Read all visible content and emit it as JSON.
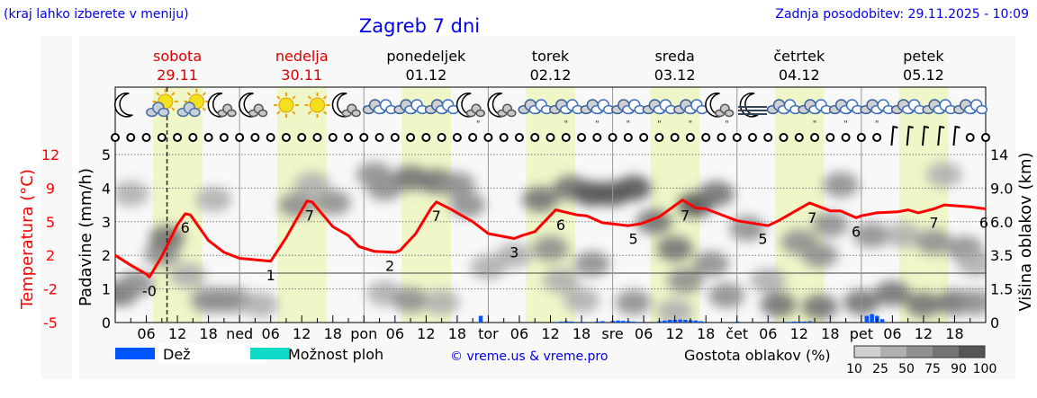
{
  "header": {
    "hint": "(kraj lahko izberete v meniju)",
    "title": "Zagreb 7 dni",
    "updated": "Zadnja posodobitev: 29.11.2025 - 10:09"
  },
  "colors": {
    "text_blue": "#0000ee",
    "temperature": "#ff0000",
    "weekend": "#dd0000",
    "daylight": "#eff6c8",
    "rain": "#0055ff",
    "showers": "#11d9c8",
    "cloud_scale": [
      "#d0d0d0",
      "#b0b0b0",
      "#909090",
      "#747474",
      "#555555"
    ]
  },
  "days": [
    {
      "name": "sobota",
      "date": "29.11",
      "weekend": true,
      "short": ""
    },
    {
      "name": "nedelja",
      "date": "30.11",
      "weekend": true,
      "short": "ned"
    },
    {
      "name": "ponedeljek",
      "date": "01.12",
      "weekend": false,
      "short": "pon"
    },
    {
      "name": "torek",
      "date": "02.12",
      "weekend": false,
      "short": "tor"
    },
    {
      "name": "sreda",
      "date": "03.12",
      "weekend": false,
      "short": "sre"
    },
    {
      "name": "četrtek",
      "date": "04.12",
      "weekend": false,
      "short": "čet"
    },
    {
      "name": "petek",
      "date": "05.12",
      "weekend": false,
      "short": "pet"
    }
  ],
  "hour_labels": [
    "06",
    "12",
    "18"
  ],
  "weather_icons": [
    "moon",
    "sun-cloud",
    "sun-cloud",
    "moon-cloud",
    "moon-cloud",
    "sun",
    "sun",
    "moon-cloud",
    "cloudy",
    "cloudy",
    "cloudy",
    "moon-cloud-rain",
    "moon-cloud",
    "cloudy",
    "cloudy-rain",
    "cloudy-rain",
    "cloudy-rain",
    "cloudy-rain",
    "cloudy-rain",
    "moon-cloud-rain",
    "moon-fog",
    "cloudy",
    "cloudy-rain",
    "cloudy-rain",
    "cloudy-rain",
    "cloudy",
    "cloudy",
    "cloudy"
  ],
  "wind_barb_hours": [
    150,
    153,
    156,
    159,
    162
  ],
  "axes": {
    "temperature_label": "Temperatura (°C)",
    "temperature_ticks": [
      "-5",
      "-2",
      "2",
      "5",
      "9",
      "12"
    ],
    "precip_label": "Padavine (mm/h)",
    "precip_ticks": [
      "0",
      "1",
      "2",
      "3",
      "4",
      "5"
    ],
    "cloud_height_label": "Višina oblakov (km)",
    "cloud_height_ticks": [
      "0",
      "1.5",
      "3.5",
      "6.0",
      "9.0",
      "14"
    ]
  },
  "legend": {
    "rain": "Dež",
    "showers": "Možnost ploh",
    "copyright": "© vreme.us & vreme.pro",
    "cloud_density": "Gostota oblakov (%)",
    "cloud_density_ticks": [
      "10",
      "25",
      "50",
      "75",
      "90",
      "100"
    ]
  },
  "chart_data": {
    "type": "line",
    "x_unit": "hours from Sat 29.11 00:00",
    "xlim": [
      0,
      168
    ],
    "ylim_precip": [
      0,
      5
    ],
    "ylim_temperature": [
      -5,
      12
    ],
    "grid": true,
    "current_time_hour": 10,
    "daylight": [
      [
        7.3,
        16.8
      ]
    ],
    "temperature": [
      [
        0,
        1.8
      ],
      [
        3,
        0.8
      ],
      [
        6,
        -0.1
      ],
      [
        6.6,
        -0.4
      ],
      [
        9,
        1.7
      ],
      [
        12,
        4.9
      ],
      [
        13.5,
        6.0
      ],
      [
        14.5,
        5.9
      ],
      [
        18,
        3.3
      ],
      [
        21,
        2.1
      ],
      [
        24,
        1.5
      ],
      [
        30,
        1.2
      ],
      [
        33,
        3.6
      ],
      [
        37,
        7.3
      ],
      [
        38,
        7.2
      ],
      [
        42,
        4.7
      ],
      [
        45,
        3.8
      ],
      [
        47,
        2.7
      ],
      [
        50,
        2.2
      ],
      [
        54,
        2.1
      ],
      [
        55,
        2.3
      ],
      [
        58,
        4.0
      ],
      [
        61,
        6.6
      ],
      [
        62,
        7.2
      ],
      [
        65,
        6.4
      ],
      [
        68,
        5.5
      ],
      [
        69,
        5.2
      ],
      [
        72,
        4.0
      ],
      [
        77,
        3.5
      ],
      [
        78.5,
        3.8
      ],
      [
        81,
        4.2
      ],
      [
        85,
        6.4
      ],
      [
        89,
        5.9
      ],
      [
        91,
        5.8
      ],
      [
        94,
        5.1
      ],
      [
        99,
        4.8
      ],
      [
        101.5,
        5.0
      ],
      [
        103,
        5.3
      ],
      [
        105,
        5.7
      ],
      [
        109.5,
        7.4
      ],
      [
        112,
        6.6
      ],
      [
        114,
        6.5
      ],
      [
        116,
        6.1
      ],
      [
        120,
        5.3
      ],
      [
        126,
        4.8
      ],
      [
        128,
        5.3
      ],
      [
        134,
        7.1
      ],
      [
        138,
        6.3
      ],
      [
        140,
        6.3
      ],
      [
        143,
        5.6
      ],
      [
        144,
        5.8
      ],
      [
        147,
        6.1
      ],
      [
        151,
        6.2
      ],
      [
        153,
        6.4
      ],
      [
        155,
        6.1
      ],
      [
        158,
        6.5
      ],
      [
        160,
        6.9
      ],
      [
        165,
        6.7
      ],
      [
        168,
        6.5
      ]
    ],
    "temperature_labels": [
      {
        "h": 6.6,
        "label": "-0"
      },
      {
        "h": 13.5,
        "label": "6"
      },
      {
        "h": 30,
        "label": "1"
      },
      {
        "h": 37.5,
        "label": "7"
      },
      {
        "h": 53,
        "label": "2"
      },
      {
        "h": 62,
        "label": "7"
      },
      {
        "h": 77,
        "label": "3"
      },
      {
        "h": 86,
        "label": "6"
      },
      {
        "h": 100,
        "label": "5"
      },
      {
        "h": 110,
        "label": "7"
      },
      {
        "h": 125,
        "label": "5"
      },
      {
        "h": 134.5,
        "label": "7"
      },
      {
        "h": 143,
        "label": "6"
      },
      {
        "h": 158,
        "label": "7"
      },
      {
        "h": 168,
        "label": "6"
      }
    ],
    "precipitation_mm_h": [
      [
        70.5,
        0.2
      ],
      [
        85,
        0.02
      ],
      [
        86,
        0.03
      ],
      [
        87,
        0.04
      ],
      [
        88,
        0.03
      ],
      [
        90,
        0.02
      ],
      [
        93,
        0.03
      ],
      [
        94,
        0.04
      ],
      [
        96,
        0.05
      ],
      [
        97,
        0.06
      ],
      [
        98,
        0.05
      ],
      [
        99,
        0.04
      ],
      [
        100,
        0.03
      ],
      [
        101,
        0.02
      ],
      [
        105,
        0.04
      ],
      [
        106,
        0.06
      ],
      [
        107,
        0.08
      ],
      [
        108,
        0.08
      ],
      [
        109,
        0.09
      ],
      [
        110,
        0.08
      ],
      [
        111,
        0.07
      ],
      [
        112,
        0.06
      ],
      [
        113,
        0.04
      ],
      [
        120,
        0.03
      ],
      [
        130,
        0.02
      ],
      [
        131,
        0.03
      ],
      [
        132,
        0.03
      ],
      [
        133,
        0.03
      ],
      [
        134,
        0.04
      ],
      [
        145,
        0.2
      ],
      [
        146,
        0.25
      ],
      [
        147,
        0.2
      ],
      [
        148,
        0.1
      ]
    ],
    "cloud_density": [
      [
        1,
        1.3,
        75
      ],
      [
        4,
        1.8,
        70
      ],
      [
        14,
        2.3,
        40
      ],
      [
        9,
        3.6,
        60
      ],
      [
        10,
        4.8,
        75
      ],
      [
        18,
        1.0,
        50
      ],
      [
        3,
        8.5,
        40
      ],
      [
        19,
        8,
        40
      ],
      [
        23,
        1.0,
        60
      ],
      [
        28,
        0.8,
        40
      ],
      [
        20,
        1.0,
        50
      ],
      [
        35,
        7.5,
        50
      ],
      [
        42,
        7.7,
        60
      ],
      [
        38,
        9.5,
        30
      ],
      [
        52,
        9,
        70
      ],
      [
        57,
        10.5,
        75
      ],
      [
        62,
        10,
        80
      ],
      [
        66,
        9.5,
        70
      ],
      [
        68,
        7.5,
        60
      ],
      [
        50,
        11,
        50
      ],
      [
        52,
        1.3,
        40
      ],
      [
        57,
        1.0,
        50
      ],
      [
        63,
        0.9,
        30
      ],
      [
        72,
        2.8,
        40
      ],
      [
        77,
        3.5,
        40
      ],
      [
        82,
        8,
        80
      ],
      [
        88,
        9,
        85
      ],
      [
        92,
        8.5,
        90
      ],
      [
        84,
        4,
        50
      ],
      [
        92,
        3,
        50
      ],
      [
        86,
        2,
        30
      ],
      [
        90,
        1.0,
        30
      ],
      [
        96,
        8.5,
        90
      ],
      [
        100,
        9,
        90
      ],
      [
        104,
        6,
        85
      ],
      [
        108,
        4,
        75
      ],
      [
        112,
        7.5,
        90
      ],
      [
        116,
        8.5,
        85
      ],
      [
        100,
        0.9,
        60
      ],
      [
        108,
        0.5,
        40
      ],
      [
        118,
        1.2,
        60
      ],
      [
        110,
        2,
        60
      ],
      [
        115,
        3,
        50
      ],
      [
        122,
        5.5,
        60
      ],
      [
        126,
        2,
        40
      ],
      [
        132,
        4.5,
        60
      ],
      [
        136,
        3.5,
        70
      ],
      [
        140,
        9.5,
        50
      ],
      [
        138,
        5.8,
        50
      ],
      [
        128,
        0.8,
        85
      ],
      [
        136,
        0.7,
        85
      ],
      [
        144,
        0.9,
        80
      ],
      [
        146,
        5,
        50
      ],
      [
        150,
        1.3,
        85
      ],
      [
        156,
        0.8,
        85
      ],
      [
        162,
        0.9,
        85
      ],
      [
        166,
        0.9,
        70
      ],
      [
        152,
        5,
        40
      ],
      [
        158,
        4.5,
        50
      ],
      [
        164,
        4,
        50
      ],
      [
        160,
        11,
        40
      ],
      [
        166,
        3,
        40
      ]
    ]
  }
}
